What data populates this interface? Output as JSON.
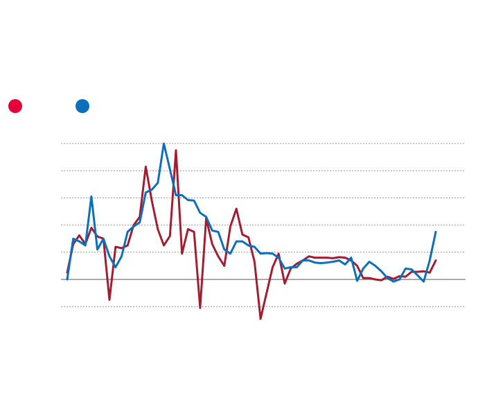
{
  "colors": {
    "series_a": "#a51c30",
    "series_b": "#0b6fbc",
    "legend_a": "#e4003b",
    "legend_b": "#0b6fbc",
    "grid": "#999999",
    "zero_line": "#777777"
  },
  "legend": [
    {
      "color": "#e4003b"
    },
    {
      "color": "#0b6fbc"
    }
  ],
  "chart_data": {
    "type": "line",
    "grid": true,
    "y_gridlines": [
      -1,
      0,
      1,
      2,
      3,
      4,
      5
    ],
    "ylim": [
      -1.2,
      5.2
    ],
    "x": [
      0,
      1,
      2,
      3,
      4,
      5,
      6,
      7,
      8,
      9,
      10,
      11,
      12,
      13,
      14,
      15,
      16,
      17,
      18,
      19,
      20,
      21,
      22,
      23,
      24,
      25,
      26,
      27,
      28,
      29,
      30,
      31,
      32,
      33,
      34,
      35,
      36,
      37,
      38,
      39,
      40,
      41,
      42,
      43,
      44,
      45,
      46,
      47,
      48,
      49,
      50,
      51,
      52,
      53,
      54,
      55,
      56,
      57,
      58,
      59,
      60,
      61
    ],
    "series": [
      {
        "values": [
          0.25,
          1.3,
          1.62,
          1.3,
          1.9,
          1.58,
          1.5,
          -0.75,
          1.2,
          1.15,
          1.25,
          2.0,
          2.3,
          4.15,
          2.9,
          1.85,
          1.25,
          1.6,
          4.75,
          0.95,
          1.85,
          1.75,
          -1.05,
          2.25,
          1.3,
          0.85,
          0.5,
          1.95,
          2.6,
          1.65,
          1.55,
          0.65,
          -1.45,
          -0.5,
          0.45,
          0.95,
          -0.15,
          0.4,
          0.58,
          0.7,
          0.85,
          0.8,
          0.8,
          0.8,
          0.78,
          0.82,
          0.8,
          0.7,
          0.5,
          0.05,
          0.05,
          0.0,
          -0.03,
          0.1,
          0.02,
          0.12,
          0.1,
          0.28,
          0.28,
          0.3,
          0.25,
          0.7
        ]
      },
      {
        "values": [
          0.0,
          1.5,
          1.4,
          1.25,
          3.05,
          1.1,
          1.5,
          0.85,
          0.45,
          0.85,
          1.75,
          1.95,
          2.1,
          3.2,
          3.3,
          3.55,
          5.0,
          4.05,
          3.1,
          3.1,
          2.92,
          2.9,
          2.45,
          2.3,
          1.8,
          1.75,
          1.1,
          0.95,
          1.4,
          1.4,
          1.25,
          1.2,
          0.95,
          0.97,
          0.95,
          0.8,
          0.4,
          0.45,
          0.45,
          0.7,
          0.7,
          0.62,
          0.6,
          0.62,
          0.65,
          0.7,
          0.55,
          0.8,
          -0.05,
          0.4,
          0.65,
          0.5,
          0.3,
          0.05,
          -0.08,
          0.0,
          0.4,
          0.37,
          0.15,
          -0.08,
          0.7,
          1.75
        ]
      }
    ]
  }
}
